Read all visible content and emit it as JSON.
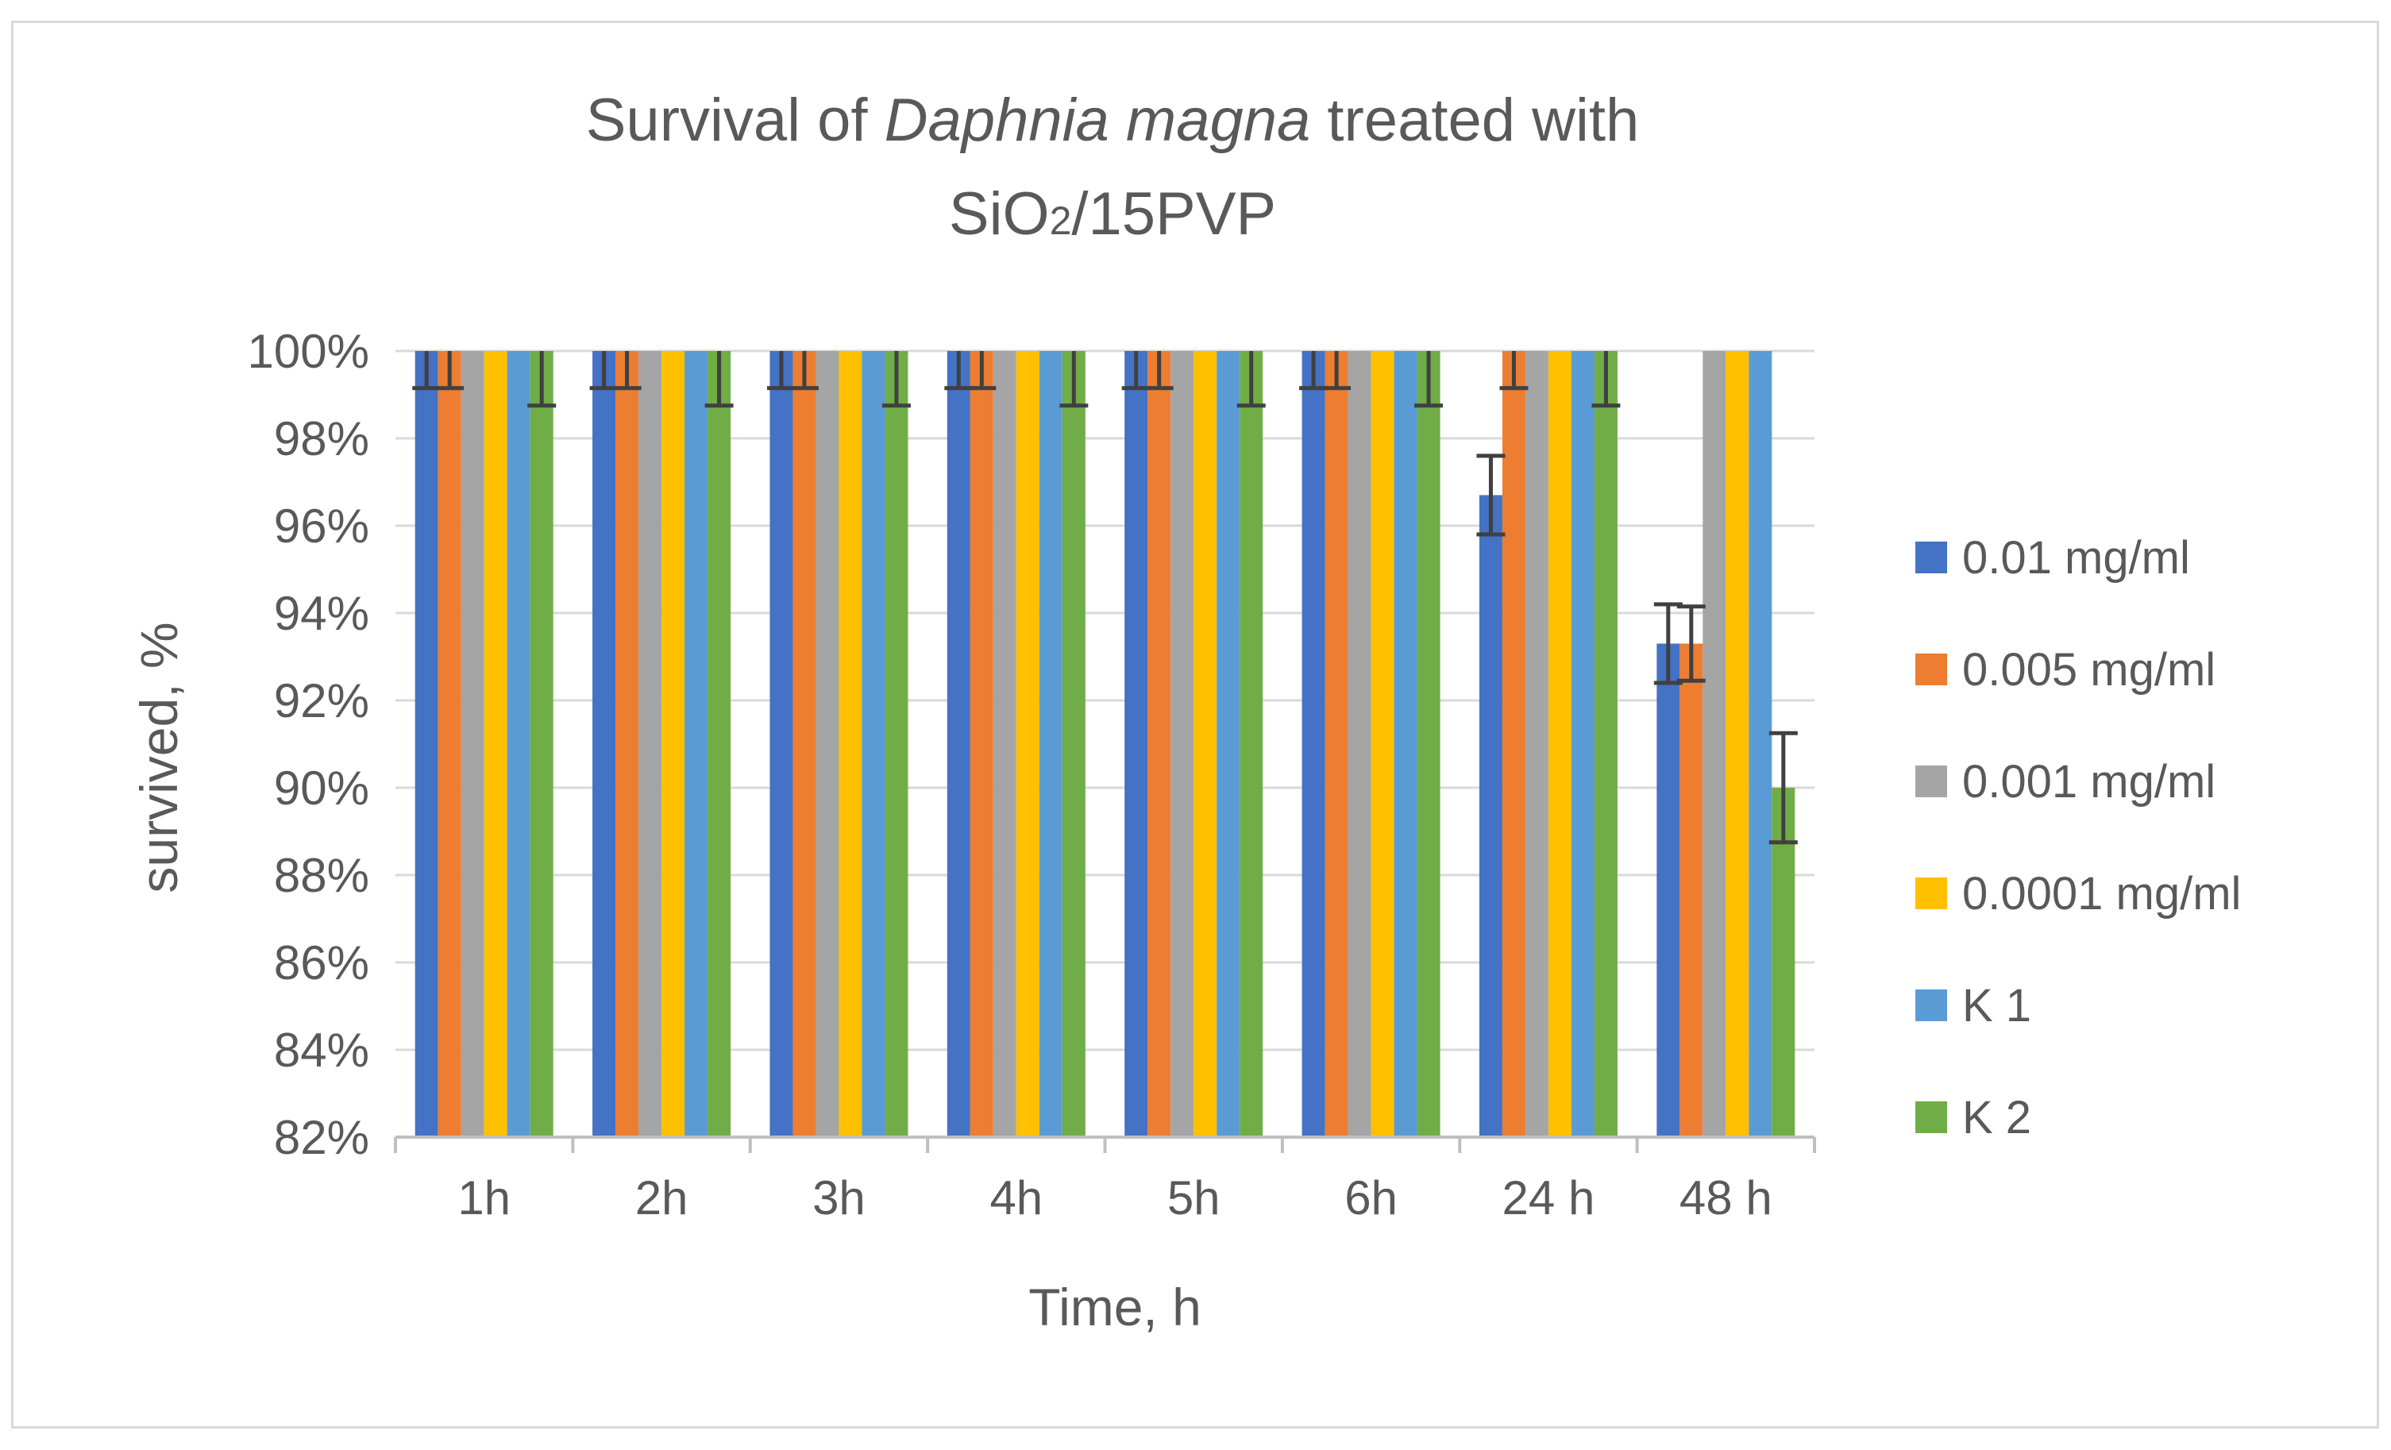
{
  "chart_data": {
    "type": "bar",
    "title": {
      "line1_pre": "Survival of ",
      "line1_italic": "Daphnia magna",
      "line1_post": " treated with",
      "line2_pre": "SiO",
      "line2_sub": "2",
      "line2_post": "/15PVP"
    },
    "xlabel": "Time, h",
    "ylabel": "survived, %",
    "ylim": [
      82,
      100
    ],
    "yticks": [
      82,
      84,
      86,
      88,
      90,
      92,
      94,
      96,
      98,
      100
    ],
    "ytick_suffix": "%",
    "grid": true,
    "legend_position": "right",
    "categories": [
      "1h",
      "2h",
      "3h",
      "4h",
      "5h",
      "6h",
      "24 h",
      "48 h"
    ],
    "series": [
      {
        "name": "0.01 mg/ml",
        "color": "#4472C4",
        "values": [
          100,
          100,
          100,
          100,
          100,
          100,
          96.7,
          93.3
        ],
        "errors": [
          0.85,
          0.85,
          0.85,
          0.85,
          0.85,
          0.85,
          0.9,
          0.9
        ]
      },
      {
        "name": "0.005 mg/ml",
        "color": "#ED7D31",
        "values": [
          100,
          100,
          100,
          100,
          100,
          100,
          100,
          93.3
        ],
        "errors": [
          0.85,
          0.85,
          0.85,
          0.85,
          0.85,
          0.85,
          0.85,
          0.85
        ]
      },
      {
        "name": "0.001 mg/ml",
        "color": "#A5A5A5",
        "values": [
          100,
          100,
          100,
          100,
          100,
          100,
          100,
          100
        ],
        "errors": [
          0,
          0,
          0,
          0,
          0,
          0,
          0,
          0
        ]
      },
      {
        "name": "0.0001 mg/ml",
        "color": "#FFC000",
        "values": [
          100,
          100,
          100,
          100,
          100,
          100,
          100,
          100
        ],
        "errors": [
          0,
          0,
          0,
          0,
          0,
          0,
          0,
          0
        ]
      },
      {
        "name": "K 1",
        "color": "#5B9BD5",
        "values": [
          100,
          100,
          100,
          100,
          100,
          100,
          100,
          100
        ],
        "errors": [
          0,
          0,
          0,
          0,
          0,
          0,
          0,
          0
        ]
      },
      {
        "name": "K 2",
        "color": "#70AD47",
        "values": [
          100,
          100,
          100,
          100,
          100,
          100,
          100,
          90
        ],
        "errors": [
          1.25,
          1.25,
          1.25,
          1.25,
          1.25,
          1.25,
          1.25,
          1.25
        ]
      }
    ]
  }
}
